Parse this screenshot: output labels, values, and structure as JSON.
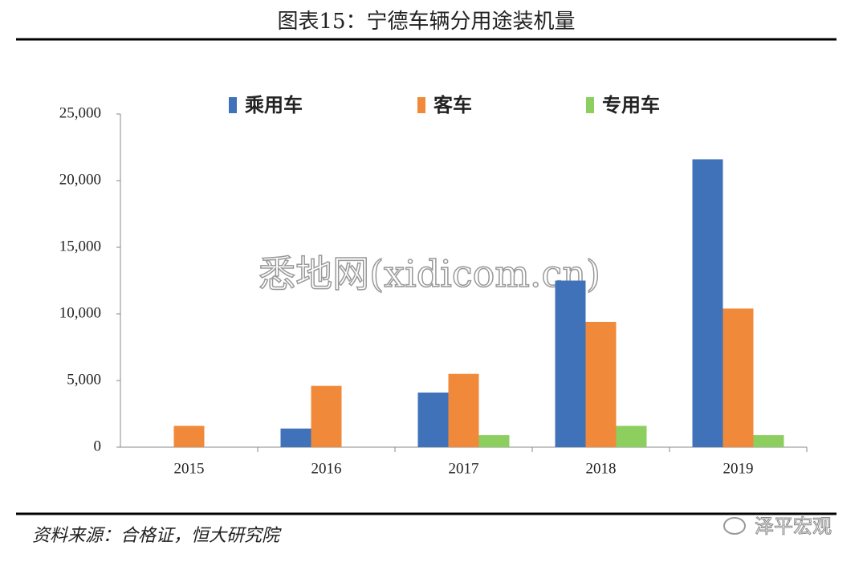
{
  "chart_data": {
    "type": "bar",
    "title": "图表15：宁德车辆分用途装机量",
    "categories": [
      "2015",
      "2016",
      "2017",
      "2018",
      "2019"
    ],
    "series": [
      {
        "name": "乘用车",
        "color": "#3f72b8",
        "values": [
          0,
          1400,
          4100,
          12500,
          21600
        ]
      },
      {
        "name": "客车",
        "color": "#f08a3a",
        "values": [
          1600,
          4600,
          5500,
          9400,
          10400
        ]
      },
      {
        "name": "专用车",
        "color": "#8ccf5e",
        "values": [
          0,
          0,
          900,
          1600,
          900
        ]
      }
    ],
    "ylim": [
      0,
      25000
    ],
    "yticks": [
      0,
      {
        "value": 5000,
        "label": "5,000"
      },
      {
        "value": 10000,
        "label": "10,000"
      },
      {
        "value": 15000,
        "label": "15,000"
      },
      {
        "value": 20000,
        "label": "20,000"
      },
      {
        "value": 25000,
        "label": "25,000"
      }
    ],
    "grid": false,
    "legend": "top"
  },
  "source": "资料来源：合格证，恒大研究院",
  "watermarks": [
    "悉地网(xidicom.cn)",
    "泽平宏观"
  ]
}
